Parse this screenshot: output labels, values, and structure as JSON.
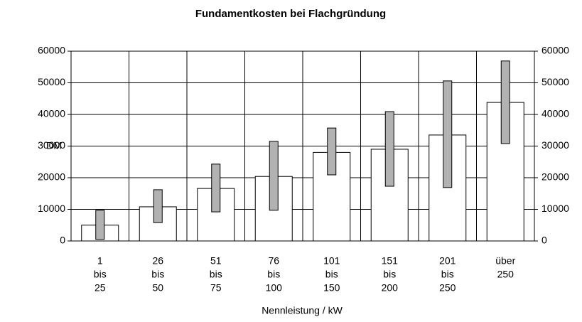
{
  "chart_data": {
    "type": "bar-range",
    "title": "Fundamentkosten bei Flachgründung",
    "ylabel": "DM",
    "xlabel": "Nennleistung / kW",
    "categories": [
      [
        "1",
        "bis",
        "25"
      ],
      [
        "26",
        "bis",
        "50"
      ],
      [
        "51",
        "bis",
        "75"
      ],
      [
        "76",
        "bis",
        "100"
      ],
      [
        "101",
        "bis",
        "150"
      ],
      [
        "151",
        "bis",
        "200"
      ],
      [
        "201",
        "bis",
        "250"
      ],
      [
        "über",
        "250"
      ]
    ],
    "values": [
      5000,
      10800,
      16600,
      20400,
      28000,
      29000,
      33500,
      43800
    ],
    "color": "#ffffff",
    "range": {
      "low": [
        500,
        5800,
        9200,
        9700,
        20900,
        17300,
        16900,
        30800
      ],
      "high": [
        9700,
        16200,
        24300,
        31500,
        35700,
        40900,
        50600,
        56900
      ],
      "color": "#b2b2b2"
    },
    "ylim": [
      0,
      60000
    ],
    "yticks": [
      0,
      10000,
      20000,
      30000,
      40000,
      50000,
      60000
    ],
    "y2lim": [
      0,
      60000
    ],
    "y2ticks": [
      0,
      10000,
      20000,
      30000,
      40000,
      50000,
      60000
    ],
    "grid": true
  }
}
